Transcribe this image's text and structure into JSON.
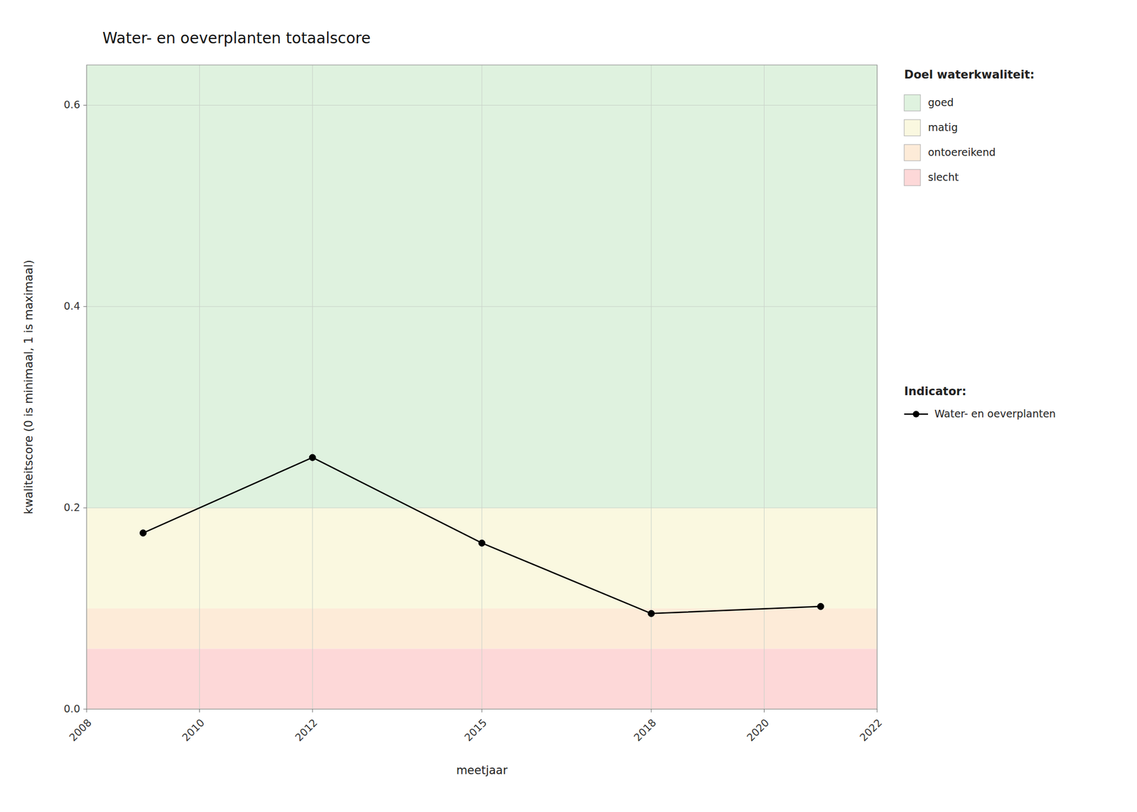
{
  "chart_data": {
    "type": "line",
    "title": "Water- en oeverplanten totaalscore",
    "x_label": "meetjaar",
    "y_label": "kwaliteitscore (0 is minimaal, 1 is maximaal)",
    "x": [
      2009,
      2012,
      2015,
      2018,
      2021
    ],
    "series": [
      {
        "name": "Water- en oeverplanten",
        "color": "#000000",
        "marker": "circle",
        "line_style": "solid",
        "values": [
          0.175,
          0.25,
          0.165,
          0.095,
          0.102
        ]
      }
    ],
    "legend_title": "Indicator:",
    "bands": {
      "title": "Doel waterkwaliteit:",
      "items": [
        {
          "name": "goed",
          "ymin": 0.2,
          "ymax": 0.64,
          "color": "#dff2df"
        },
        {
          "name": "matig",
          "ymin": 0.1,
          "ymax": 0.2,
          "color": "#faf8e0"
        },
        {
          "name": "ontoereikend",
          "ymin": 0.06,
          "ymax": 0.1,
          "color": "#fdebd8"
        },
        {
          "name": "slecht",
          "ymin": 0,
          "ymax": 0.06,
          "color": "#fdd8d8"
        }
      ]
    },
    "xlim": [
      2008,
      2022
    ],
    "ylim": [
      0,
      0.64
    ],
    "xticks": [
      2008,
      2010,
      2012,
      2015,
      2018,
      2020,
      2022
    ],
    "yticks": [
      {
        "value": 0,
        "label": "0.0"
      },
      0.2,
      0.4,
      0.6
    ],
    "grid": true,
    "legend": "right"
  }
}
